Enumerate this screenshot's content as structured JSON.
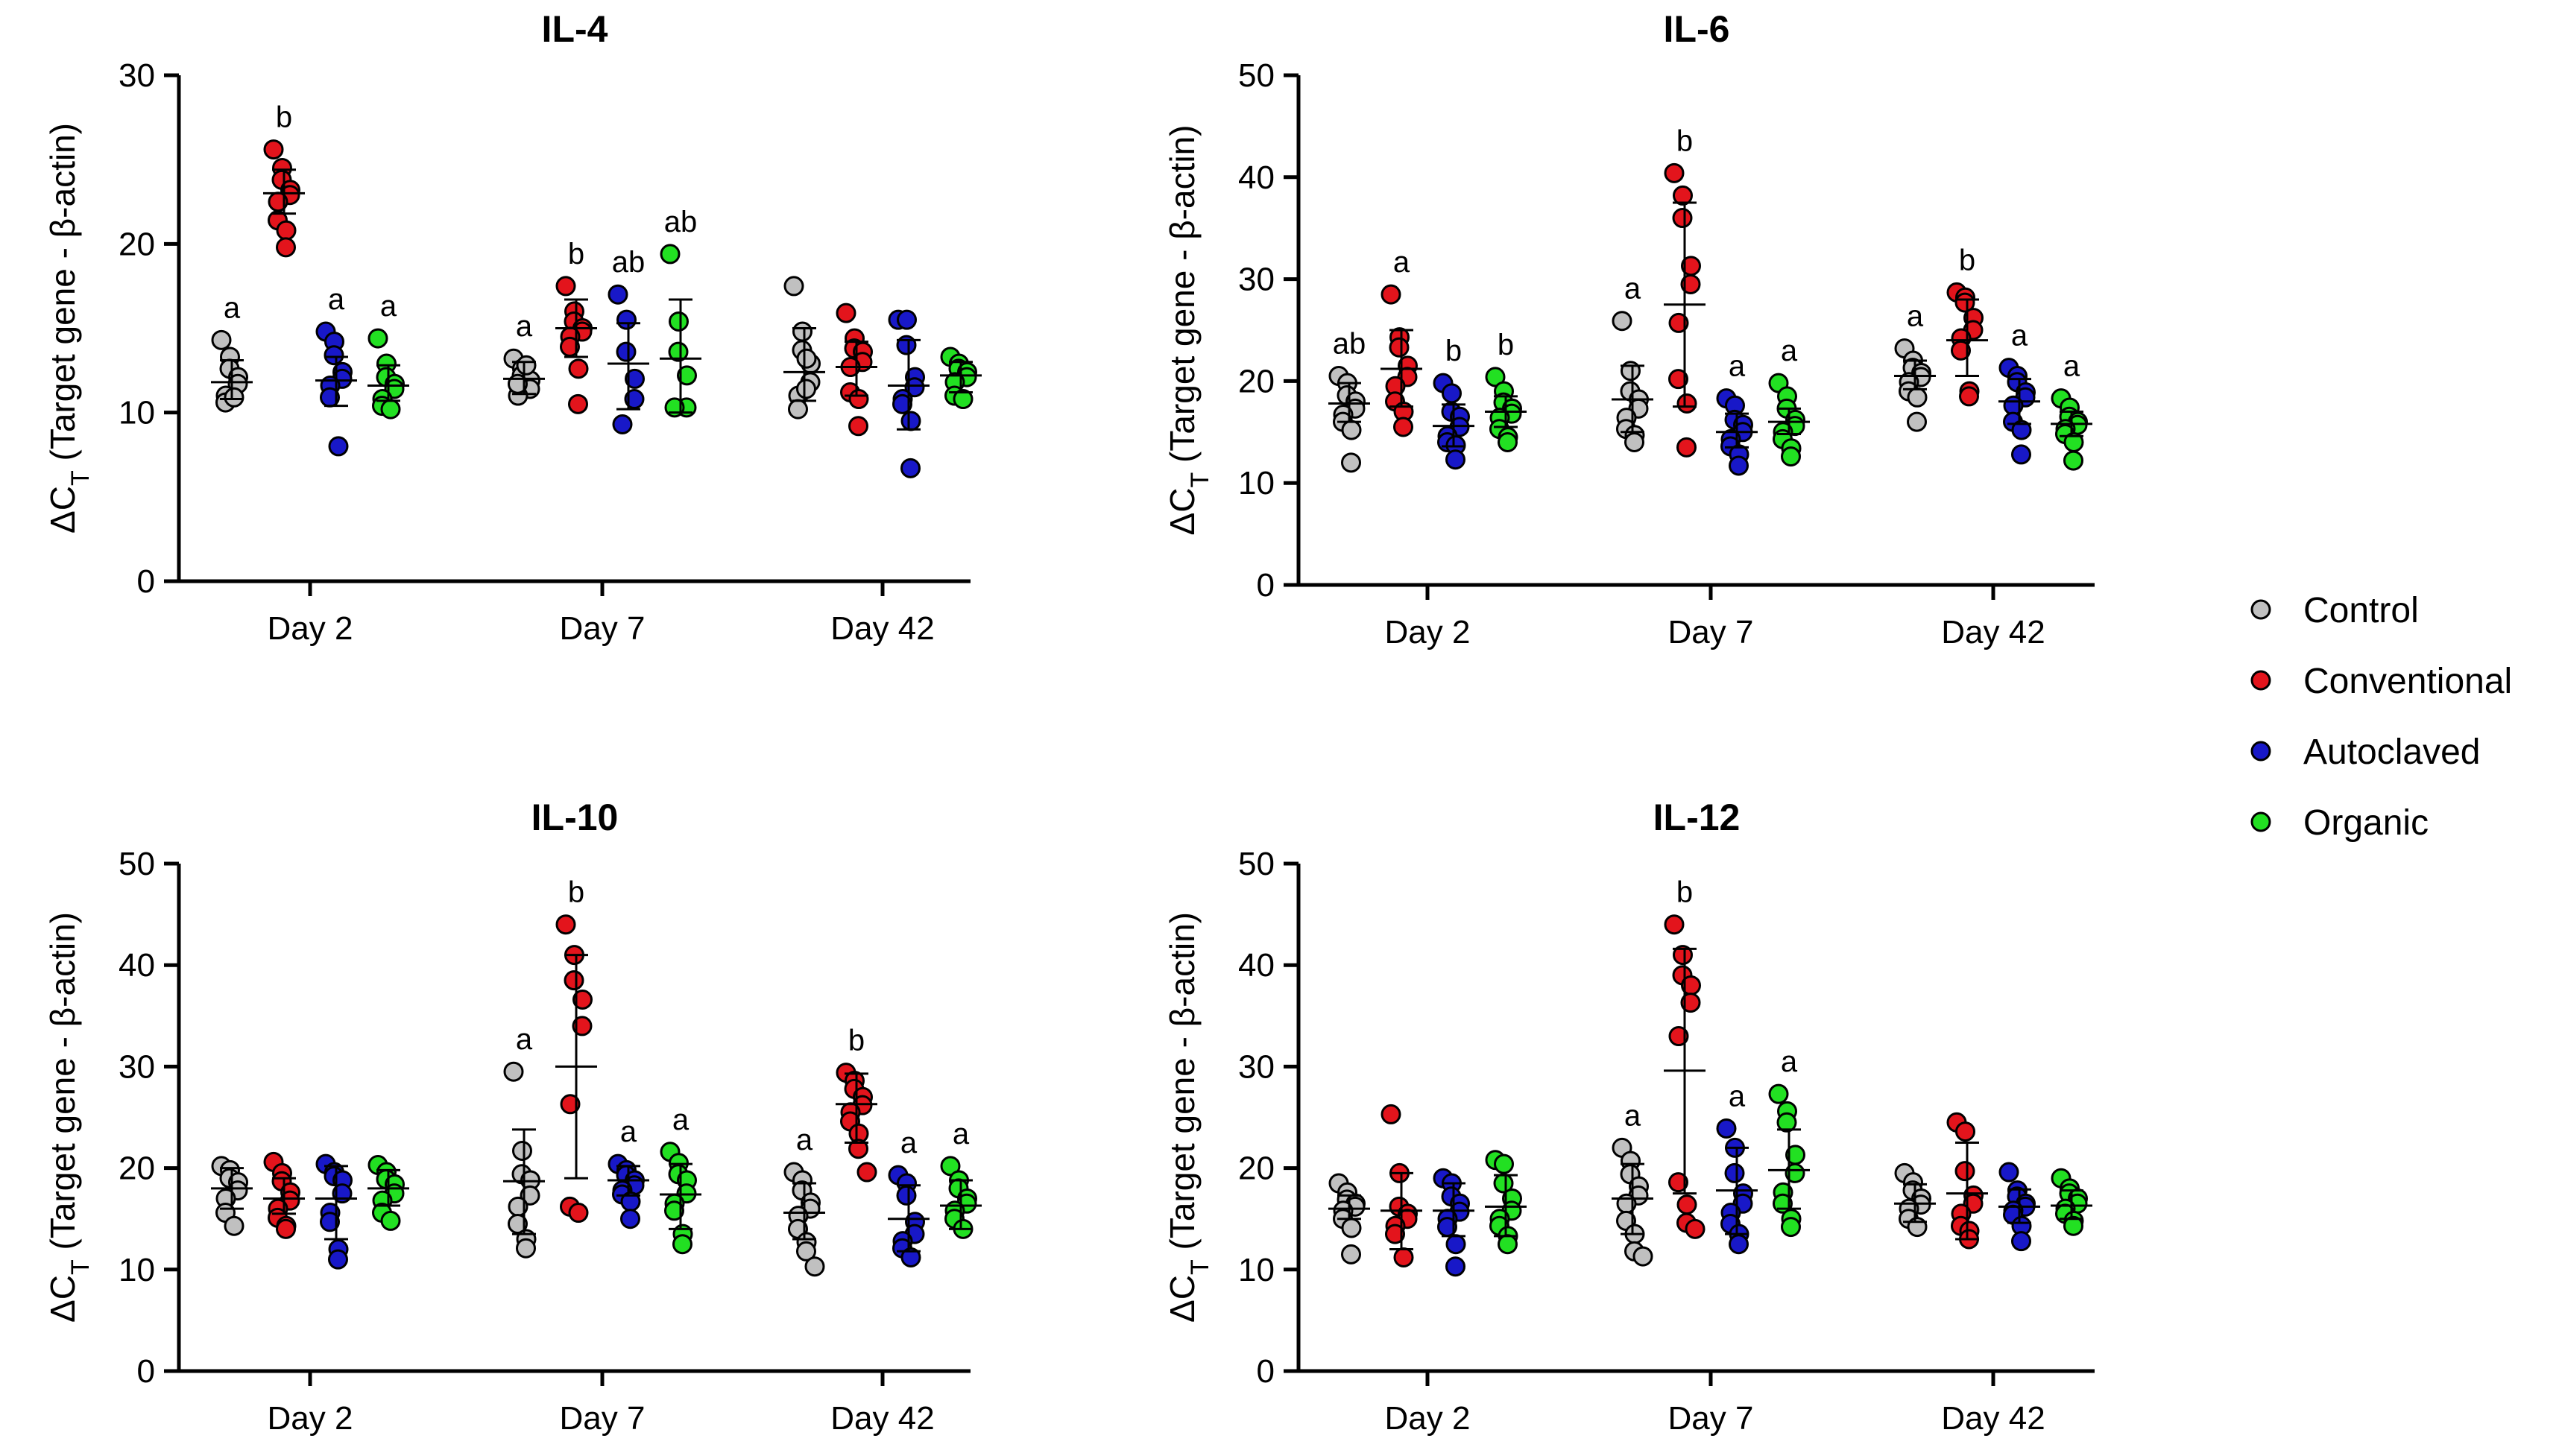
{
  "figure": {
    "groups": [
      {
        "name": "Control",
        "color": "#c0c0c0"
      },
      {
        "name": "Conventional",
        "color": "#e3141c"
      },
      {
        "name": "Autoclaved",
        "color": "#1818c8"
      },
      {
        "name": "Organic",
        "color": "#22e022"
      }
    ],
    "y_label": {
      "main": "ΔC",
      "sub": "T",
      "rest": " (Target gene - β-actin)"
    }
  },
  "chart_data": [
    {
      "type": "scatter",
      "title": "IL-4",
      "categories": [
        "Day 2",
        "Day 7",
        "Day 42"
      ],
      "ylim": [
        0,
        30
      ],
      "yticks": [
        "0",
        "10",
        "20",
        "30"
      ],
      "ylabel": "ΔCT (Target gene - β-actin)",
      "series": [
        {
          "name": "Control",
          "points": [
            [
              14.3,
              13.3,
              12.6,
              12.1,
              11.7,
              11.0,
              10.6,
              10.9
            ],
            [
              13.2,
              12.6,
              12.2,
              11.9,
              11.4,
              11.0,
              11.7,
              12.8
            ],
            [
              17.5,
              14.8,
              13.7,
              12.9,
              11.8,
              11.0,
              10.2,
              13.2,
              11.4
            ]
          ],
          "mean": [
            11.8,
            12.0,
            12.4
          ],
          "sd_low": [
            10.8,
            11.1,
            10.7
          ],
          "sd_high": [
            13.1,
            13.0,
            15.0
          ],
          "sig": [
            "a",
            "a",
            ""
          ]
        },
        {
          "name": "Conventional",
          "points": [
            [
              25.6,
              24.5,
              23.8,
              23.2,
              22.9,
              22.5,
              21.4,
              20.8,
              19.8
            ],
            [
              17.5,
              16.0,
              15.4,
              15.0,
              14.8,
              14.5,
              13.9,
              12.6,
              10.5
            ],
            [
              15.9,
              14.4,
              13.8,
              13.6,
              13.0,
              12.7,
              11.2,
              10.8,
              9.2
            ]
          ],
          "mean": [
            23.0,
            15.0,
            12.7
          ],
          "sd_low": [
            21.8,
            13.3,
            11.0
          ],
          "sd_high": [
            24.4,
            16.7,
            14.2
          ],
          "sig": [
            "b",
            "b",
            ""
          ]
        },
        {
          "name": "Autoclaved",
          "points": [
            [
              14.8,
              14.2,
              13.4,
              12.4,
              12.0,
              11.6,
              10.9,
              8.0
            ],
            [
              17.0,
              15.5,
              13.6,
              12.0,
              10.8,
              9.3
            ],
            [
              15.5,
              15.5,
              14.0,
              12.1,
              11.5,
              10.8,
              10.5,
              9.5,
              6.7
            ]
          ],
          "mean": [
            11.9,
            12.9,
            11.6
          ],
          "sd_low": [
            10.4,
            10.2,
            9.0
          ],
          "sd_high": [
            13.3,
            15.3,
            14.3
          ],
          "sig": [
            "a",
            "ab",
            ""
          ]
        },
        {
          "name": "Organic",
          "points": [
            [
              14.4,
              12.9,
              12.1,
              11.7,
              11.4,
              10.8,
              10.4,
              10.2
            ],
            [
              19.4,
              15.4,
              13.6,
              12.2,
              10.3,
              10.3
            ],
            [
              13.3,
              12.9,
              12.6,
              12.4,
              12.1,
              11.8,
              11.0,
              10.8
            ]
          ],
          "mean": [
            11.6,
            13.2,
            12.2
          ],
          "sd_low": [
            10.7,
            10.0,
            11.2
          ],
          "sd_high": [
            12.8,
            16.7,
            13.0
          ],
          "sig": [
            "a",
            "ab",
            ""
          ]
        }
      ]
    },
    {
      "type": "scatter",
      "title": "IL-6",
      "categories": [
        "Day 2",
        "Day 7",
        "Day 42"
      ],
      "ylim": [
        0,
        50
      ],
      "yticks": [
        "0",
        "10",
        "20",
        "30",
        "40",
        "50"
      ],
      "ylabel": "ΔCT (Target gene - β-actin)",
      "series": [
        {
          "name": "Control",
          "points": [
            [
              20.5,
              19.8,
              18.6,
              18.0,
              17.3,
              16.7,
              16.0,
              15.2,
              12.0
            ],
            [
              25.9,
              21.0,
              19.0,
              18.2,
              17.3,
              16.4,
              15.3,
              14.7,
              14.0
            ],
            [
              23.2,
              22.0,
              21.3,
              20.8,
              20.4,
              19.9,
              19.0,
              18.4,
              16.0
            ]
          ],
          "mean": [
            17.8,
            18.2,
            20.5
          ],
          "sd_low": [
            16.0,
            15.0,
            19.2
          ],
          "sd_high": [
            19.8,
            21.5,
            22.0
          ],
          "sig": [
            "ab",
            "a",
            "a"
          ]
        },
        {
          "name": "Conventional",
          "points": [
            [
              28.5,
              24.3,
              23.3,
              21.5,
              20.4,
              19.5,
              18.0,
              17.0,
              15.5
            ],
            [
              40.4,
              38.2,
              36.0,
              31.3,
              29.5,
              25.7,
              20.2,
              17.8,
              13.5
            ],
            [
              28.7,
              28.2,
              27.7,
              26.2,
              25.0,
              24.2,
              23.0,
              19.0,
              18.5
            ]
          ],
          "mean": [
            21.2,
            27.5,
            24.0
          ],
          "sd_low": [
            17.5,
            17.5,
            20.5
          ],
          "sd_high": [
            25.0,
            37.5,
            28.0
          ],
          "sig": [
            "a",
            "b",
            "b"
          ]
        },
        {
          "name": "Autoclaved",
          "points": [
            [
              19.8,
              18.8,
              17.0,
              16.5,
              15.5,
              14.6,
              14.0,
              13.7,
              12.3
            ],
            [
              18.3,
              17.6,
              16.2,
              15.7,
              15.0,
              14.3,
              13.6,
              12.8,
              11.7
            ],
            [
              21.3,
              20.5,
              19.9,
              18.9,
              18.4,
              17.6,
              16.0,
              15.2,
              12.8
            ]
          ],
          "mean": [
            15.6,
            15.0,
            18.0
          ],
          "sd_low": [
            13.6,
            13.5,
            15.8
          ],
          "sd_high": [
            17.7,
            16.8,
            20.2
          ],
          "sig": [
            "b",
            "a",
            "a"
          ]
        },
        {
          "name": "Organic",
          "points": [
            [
              20.4,
              19.0,
              17.9,
              17.3,
              16.8,
              16.4,
              15.3,
              14.5,
              14.0
            ],
            [
              19.8,
              18.5,
              17.3,
              16.2,
              15.6,
              15.0,
              14.3,
              13.4,
              12.6
            ],
            [
              18.3,
              17.4,
              16.5,
              16.0,
              15.7,
              15.3,
              14.8,
              14.0,
              12.2
            ]
          ],
          "mean": [
            17.0,
            16.0,
            15.8
          ],
          "sd_low": [
            15.5,
            14.8,
            14.6
          ],
          "sd_high": [
            18.5,
            17.3,
            17.0
          ],
          "sig": [
            "b",
            "a",
            "a"
          ]
        }
      ]
    },
    {
      "type": "scatter",
      "title": "IL-10",
      "categories": [
        "Day 2",
        "Day 7",
        "Day 42"
      ],
      "ylim": [
        0,
        50
      ],
      "yticks": [
        "0",
        "10",
        "20",
        "30",
        "40",
        "50"
      ],
      "ylabel": "ΔCT (Target gene - β-actin)",
      "series": [
        {
          "name": "Control",
          "points": [
            [
              20.2,
              19.8,
              19.0,
              18.6,
              17.8,
              17.0,
              15.6,
              14.3
            ],
            [
              29.5,
              21.7,
              19.4,
              18.8,
              17.3,
              16.2,
              14.5,
              13.0,
              12.1
            ],
            [
              19.6,
              18.8,
              17.8,
              16.6,
              16.0,
              15.3,
              14.0,
              12.7,
              11.8,
              10.3
            ]
          ],
          "mean": [
            18.0,
            18.7,
            15.6
          ],
          "sd_low": [
            16.0,
            13.5,
            13.0
          ],
          "sd_high": [
            20.0,
            23.8,
            18.5
          ],
          "sig": [
            "",
            "a",
            "a"
          ]
        },
        {
          "name": "Conventional",
          "points": [
            [
              20.6,
              19.5,
              18.7,
              17.6,
              16.8,
              16.0,
              15.1,
              14.3,
              14.0
            ],
            [
              44.0,
              41.0,
              38.5,
              36.6,
              34.0,
              26.3,
              16.2,
              15.6
            ],
            [
              29.4,
              28.6,
              27.8,
              27.0,
              26.2,
              25.5,
              24.6,
              23.4,
              21.9,
              19.6
            ]
          ],
          "mean": [
            17.0,
            30.0,
            26.3
          ],
          "sd_low": [
            15.5,
            19.0,
            22.5
          ],
          "sd_high": [
            19.0,
            41.0,
            29.3
          ],
          "sig": [
            "",
            "b",
            "b"
          ]
        },
        {
          "name": "Autoclaved",
          "points": [
            [
              20.4,
              19.6,
              19.2,
              18.8,
              17.5,
              15.6,
              14.7,
              12.0,
              11.0
            ],
            [
              20.4,
              19.8,
              19.3,
              18.8,
              18.3,
              17.8,
              17.4,
              16.7,
              15.0
            ],
            [
              19.3,
              18.5,
              17.3,
              14.7,
              13.5,
              12.8,
              12.1,
              11.2
            ]
          ],
          "mean": [
            17.0,
            18.8,
            15.0
          ],
          "sd_low": [
            13.0,
            17.3,
            11.8
          ],
          "sd_high": [
            20.2,
            20.2,
            18.3
          ],
          "sig": [
            "",
            "a",
            "a"
          ]
        },
        {
          "name": "Organic",
          "points": [
            [
              20.3,
              19.6,
              18.9,
              18.4,
              17.5,
              16.8,
              15.6,
              14.8
            ],
            [
              21.6,
              20.5,
              19.4,
              18.8,
              17.5,
              16.5,
              15.8,
              13.5,
              12.5
            ],
            [
              20.2,
              18.8,
              18.0,
              17.0,
              16.5,
              15.8,
              15.0,
              14.0
            ]
          ],
          "mean": [
            18.0,
            17.4,
            16.3
          ],
          "sd_low": [
            16.3,
            14.0,
            14.0
          ],
          "sd_high": [
            19.8,
            20.4,
            18.8
          ],
          "sig": [
            "",
            "a",
            "a"
          ]
        }
      ]
    },
    {
      "type": "scatter",
      "title": "IL-12",
      "categories": [
        "Day 2",
        "Day 7",
        "Day 42"
      ],
      "ylim": [
        0,
        50
      ],
      "yticks": [
        "0",
        "10",
        "20",
        "30",
        "40",
        "50"
      ],
      "ylabel": "ΔCT (Target gene - β-actin)",
      "series": [
        {
          "name": "Control",
          "points": [
            [
              18.5,
              17.6,
              16.9,
              16.5,
              16.2,
              15.8,
              15.0,
              14.1,
              11.5
            ],
            [
              22.0,
              20.7,
              19.4,
              18.2,
              17.3,
              16.5,
              14.8,
              13.5,
              11.8,
              11.3
            ],
            [
              19.5,
              18.6,
              17.8,
              17.0,
              16.4,
              16.0,
              15.0,
              14.2
            ]
          ],
          "mean": [
            16.0,
            17.0,
            16.5
          ],
          "sd_low": [
            15.0,
            13.5,
            14.7
          ],
          "sd_high": [
            17.3,
            20.4,
            18.4
          ],
          "sig": [
            "",
            "a",
            ""
          ]
        },
        {
          "name": "Conventional",
          "points": [
            [
              25.3,
              19.5,
              16.2,
              15.5,
              15.0,
              14.3,
              13.5,
              11.2
            ],
            [
              44.0,
              41.0,
              39.0,
              38.0,
              36.3,
              33.0,
              18.6,
              16.4,
              14.6,
              14.0
            ],
            [
              24.5,
              23.6,
              19.7,
              17.3,
              16.5,
              15.5,
              14.3,
              13.8,
              13.0
            ]
          ],
          "mean": [
            15.8,
            29.6,
            17.5
          ],
          "sd_low": [
            12.0,
            17.5,
            13.0
          ],
          "sd_high": [
            19.5,
            41.6,
            22.5
          ],
          "sig": [
            "",
            "b",
            ""
          ]
        },
        {
          "name": "Autoclaved",
          "points": [
            [
              19.0,
              18.5,
              17.2,
              16.5,
              15.7,
              15.0,
              14.2,
              12.5,
              10.3
            ],
            [
              23.9,
              22.0,
              19.5,
              17.5,
              16.5,
              15.6,
              14.5,
              13.5,
              12.5
            ],
            [
              19.6,
              17.8,
              17.2,
              16.5,
              16.2,
              15.8,
              15.4,
              14.3,
              12.8
            ]
          ],
          "mean": [
            15.8,
            17.8,
            16.2
          ],
          "sd_low": [
            13.3,
            13.5,
            14.6
          ],
          "sd_high": [
            18.5,
            22.0,
            17.9
          ],
          "sig": [
            "",
            "a",
            ""
          ]
        },
        {
          "name": "Organic",
          "points": [
            [
              20.8,
              20.4,
              18.5,
              17.0,
              15.8,
              15.0,
              14.3,
              13.3,
              12.5
            ],
            [
              27.3,
              25.6,
              24.5,
              21.3,
              19.5,
              17.6,
              16.5,
              15.0,
              14.2
            ],
            [
              19.0,
              18.0,
              17.5,
              17.0,
              16.5,
              16.0,
              15.5,
              14.8,
              14.3
            ]
          ],
          "mean": [
            16.2,
            19.8,
            16.3
          ],
          "sd_low": [
            13.3,
            16.0,
            15.0
          ],
          "sd_high": [
            19.3,
            23.8,
            17.8
          ],
          "sig": [
            "",
            "a",
            ""
          ]
        }
      ]
    }
  ]
}
